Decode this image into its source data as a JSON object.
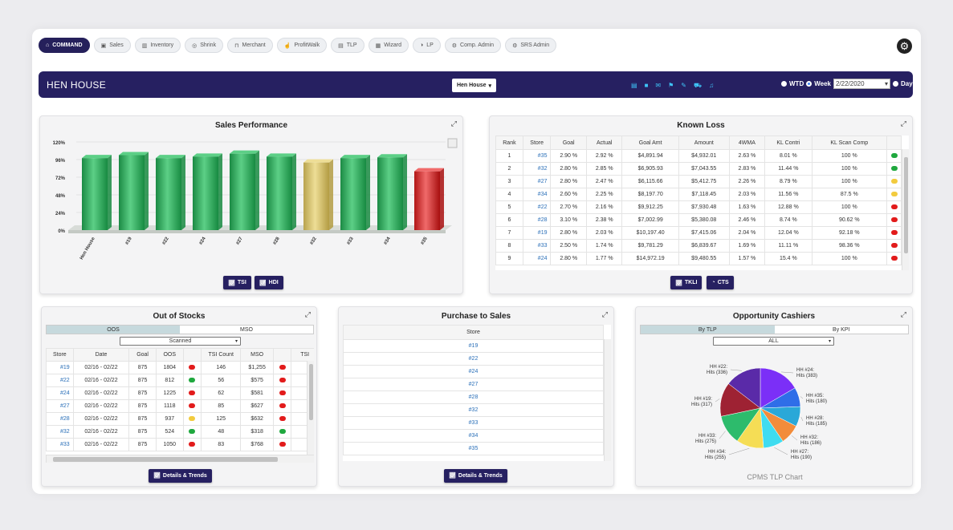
{
  "nav": {
    "items": [
      {
        "label": "COMMAND",
        "icon": "home-icon",
        "active": true
      },
      {
        "label": "Sales",
        "icon": "cash-icon"
      },
      {
        "label": "Inventory",
        "icon": "barcode-icon"
      },
      {
        "label": "Shrink",
        "icon": "binoculars-icon"
      },
      {
        "label": "Merchant",
        "icon": "shopping-basket-icon"
      },
      {
        "label": "ProfitWalk",
        "icon": "thumbs-up-icon"
      },
      {
        "label": "TLP",
        "icon": "register-icon"
      },
      {
        "label": "Wizard",
        "icon": "chart-icon"
      },
      {
        "label": "LP",
        "icon": "half-circle-icon"
      },
      {
        "label": "Comp. Admin",
        "icon": "cogs-icon"
      },
      {
        "label": "SRS Admin",
        "icon": "cogs-icon"
      }
    ]
  },
  "banner": {
    "title": "HEN HOUSE",
    "store_select": "Hen House",
    "icons": [
      "file-icon",
      "video-icon",
      "envelope-icon",
      "flag-icon",
      "edit-icon",
      "cart-icon",
      "bell-icon"
    ],
    "wtd_label": "WTD",
    "week_label": "Week",
    "week_value": "2/22/2020",
    "day_label": "Day"
  },
  "sales": {
    "title": "Sales Performance",
    "buttons": [
      {
        "label": "TSI"
      },
      {
        "label": "HDI"
      }
    ]
  },
  "chart_data": {
    "type": "bar",
    "title": "Sales Performance",
    "categories": [
      "Hen House",
      "#19",
      "#22",
      "#24",
      "#27",
      "#28",
      "#32",
      "#33",
      "#34",
      "#35"
    ],
    "values": [
      98,
      102,
      98,
      100,
      104,
      100,
      92,
      98,
      99,
      80
    ],
    "colors": [
      "green",
      "green",
      "green",
      "green",
      "green",
      "green",
      "yellow",
      "green",
      "green",
      "red"
    ],
    "yticks": [
      "0%",
      "24%",
      "48%",
      "72%",
      "96%",
      "120%"
    ],
    "ylim": [
      0,
      120
    ]
  },
  "known_loss": {
    "title": "Known Loss",
    "columns": [
      "Rank",
      "Store",
      "Goal",
      "Actual",
      "Goal Amt",
      "Amount",
      "4WMA",
      "KL Contri",
      "KL Scan Comp"
    ],
    "rows": [
      [
        "1",
        "#35",
        "2.90 %",
        "2.92 %",
        "$4,891.94",
        "$4,932.01",
        "2.63 %",
        "8.01 %",
        "100 %",
        "green"
      ],
      [
        "2",
        "#32",
        "2.80 %",
        "2.85 %",
        "$6,905.93",
        "$7,043.55",
        "2.83 %",
        "11.44 %",
        "100 %",
        "green"
      ],
      [
        "3",
        "#27",
        "2.80 %",
        "2.47 %",
        "$6,115.66",
        "$5,412.75",
        "2.26 %",
        "8.79 %",
        "100 %",
        "yellow"
      ],
      [
        "4",
        "#34",
        "2.60 %",
        "2.25 %",
        "$8,197.70",
        "$7,118.45",
        "2.03 %",
        "11.56 %",
        "87.5 %",
        "yellow"
      ],
      [
        "5",
        "#22",
        "2.70 %",
        "2.16 %",
        "$9,912.25",
        "$7,930.48",
        "1.63 %",
        "12.88 %",
        "100 %",
        "red"
      ],
      [
        "6",
        "#28",
        "3.10 %",
        "2.38 %",
        "$7,002.99",
        "$5,380.08",
        "2.46 %",
        "8.74 %",
        "90.62 %",
        "red"
      ],
      [
        "7",
        "#19",
        "2.80 %",
        "2.03 %",
        "$10,197.40",
        "$7,415.06",
        "2.04 %",
        "12.04 %",
        "92.18 %",
        "red"
      ],
      [
        "8",
        "#33",
        "2.50 %",
        "1.74 %",
        "$9,781.29",
        "$6,839.67",
        "1.69 %",
        "11.11 %",
        "98.36 %",
        "red"
      ],
      [
        "9",
        "#24",
        "2.80 %",
        "1.77 %",
        "$14,972.19",
        "$9,480.55",
        "1.57 %",
        "15.4 %",
        "100 %",
        "red"
      ]
    ],
    "buttons": [
      {
        "label": "TKLI"
      },
      {
        "label": "CTS"
      }
    ]
  },
  "oos": {
    "title": "Out of Stocks",
    "tabs": [
      "OOS",
      "MSO"
    ],
    "filter": "Scanned",
    "columns": [
      "Store",
      "Date",
      "Goal",
      "OOS",
      "",
      "TSI Count",
      "MSO",
      "",
      "TSI"
    ],
    "rows": [
      [
        "#19",
        "02/16 - 02/22",
        "875",
        "1804",
        "red",
        "146",
        "$1,255",
        "red"
      ],
      [
        "#22",
        "02/16 - 02/22",
        "875",
        "812",
        "green",
        "56",
        "$575",
        "red"
      ],
      [
        "#24",
        "02/16 - 02/22",
        "875",
        "1225",
        "red",
        "62",
        "$581",
        "red"
      ],
      [
        "#27",
        "02/16 - 02/22",
        "875",
        "1118",
        "red",
        "85",
        "$627",
        "red"
      ],
      [
        "#28",
        "02/16 - 02/22",
        "875",
        "937",
        "yellow",
        "125",
        "$632",
        "red"
      ],
      [
        "#32",
        "02/16 - 02/22",
        "875",
        "524",
        "green",
        "48",
        "$318",
        "green"
      ],
      [
        "#33",
        "02/16 - 02/22",
        "875",
        "1050",
        "red",
        "83",
        "$768",
        "red"
      ]
    ],
    "button": "Details & Trends"
  },
  "pts": {
    "title": "Purchase to Sales",
    "column": "Store",
    "stores": [
      "#19",
      "#22",
      "#24",
      "#27",
      "#28",
      "#32",
      "#33",
      "#34",
      "#35"
    ],
    "button": "Details & Trends"
  },
  "cashiers": {
    "title": "Opportunity Cashiers",
    "tabs": [
      "By TLP",
      "By KPI"
    ],
    "filter": "ALL",
    "footer": "CPMS TLP Chart",
    "slices": [
      {
        "label": "HH #24: Hits (383)",
        "value": 383,
        "color": "#7b2ff7"
      },
      {
        "label": "HH #35: Hits (180)",
        "value": 180,
        "color": "#2f6ee8"
      },
      {
        "label": "HH #28: Hits (185)",
        "value": 185,
        "color": "#2aa8d8"
      },
      {
        "label": "HH #32: Hits (186)",
        "value": 186,
        "color": "#f28c3b"
      },
      {
        "label": "HH #27: Hits (190)",
        "value": 190,
        "color": "#3fdcf0"
      },
      {
        "label": "HH #34: Hits (255)",
        "value": 255,
        "color": "#f5dd55"
      },
      {
        "label": "HH #33: Hits (275)",
        "value": 275,
        "color": "#2dbb6c"
      },
      {
        "label": "HH #19: Hits (317)",
        "value": 317,
        "color": "#9e2233"
      },
      {
        "label": "HH #22: Hits (336)",
        "value": 336,
        "color": "#5a2aa8"
      }
    ]
  }
}
